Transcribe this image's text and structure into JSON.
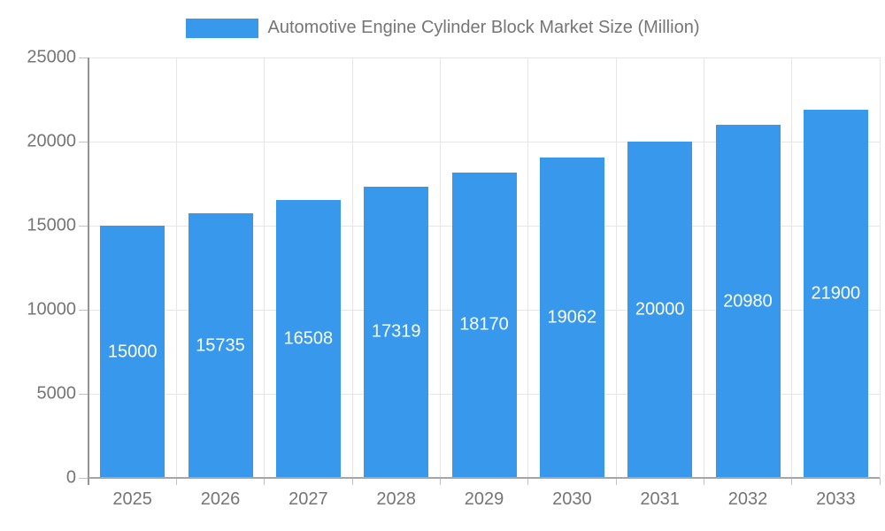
{
  "chart_data": {
    "type": "bar",
    "title": "Automotive Engine Cylinder Block Market Size (Million)",
    "categories": [
      "2025",
      "2026",
      "2027",
      "2028",
      "2029",
      "2030",
      "2031",
      "2032",
      "2033"
    ],
    "values": [
      15000,
      15735,
      16508,
      17319,
      18170,
      19062,
      20000,
      20980,
      21900
    ],
    "xlabel": "",
    "ylabel": "",
    "ylim": [
      0,
      25000
    ],
    "yticks": [
      0,
      5000,
      10000,
      15000,
      20000,
      25000
    ],
    "grid": true,
    "legend_position": "top",
    "legend_entries": [
      "Automotive Engine Cylinder Block Market Size (Million)"
    ],
    "value_labels_inside_bars": true
  },
  "colors": {
    "bar": "#3898EC",
    "axis_label": "#757575",
    "value_label": "#FFFFFF",
    "grid_line": "#E6E6E6",
    "axis_line": "#999999",
    "tick": "#C2C2C2",
    "background": "#FFFFFF"
  }
}
